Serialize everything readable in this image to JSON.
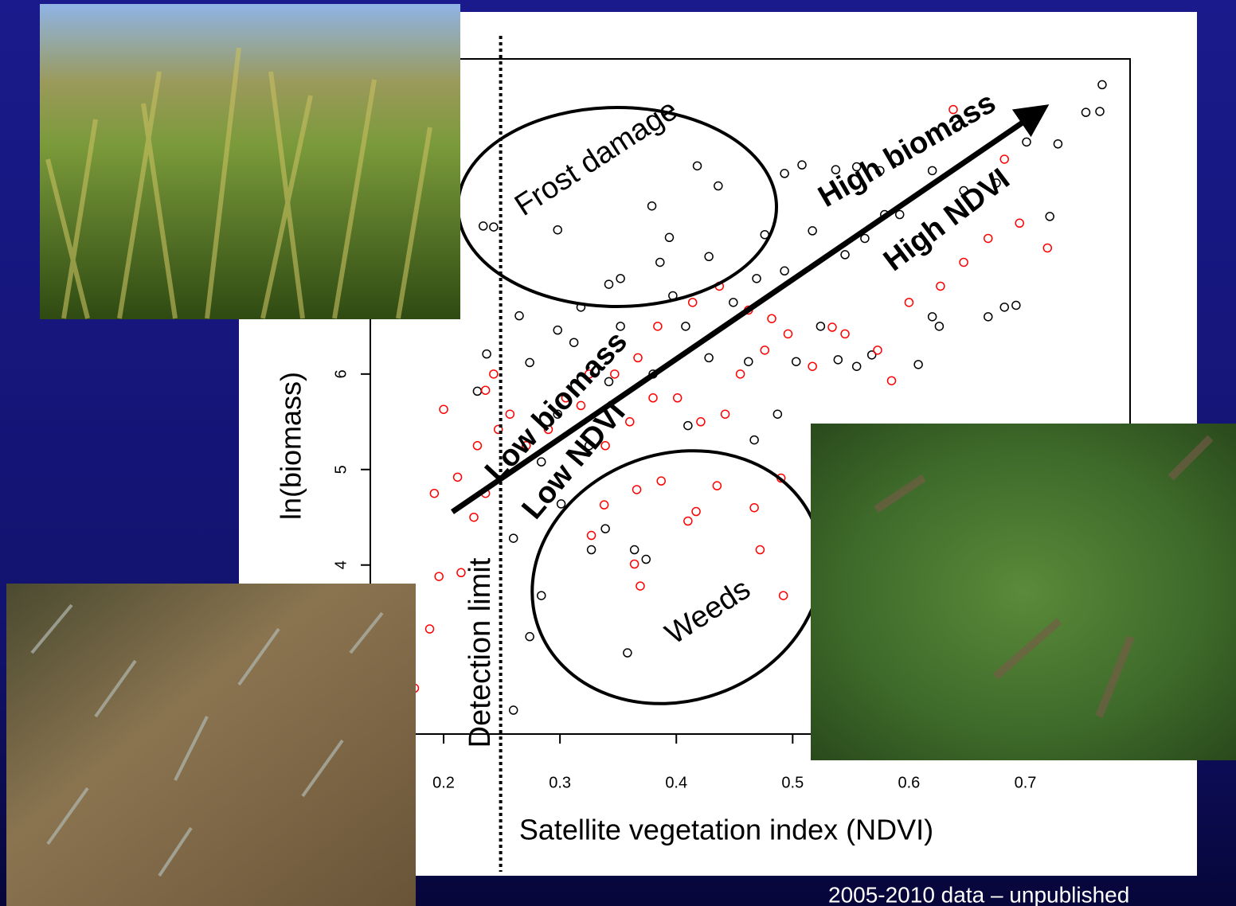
{
  "chart_data": {
    "type": "scatter",
    "xlabel": "Satellite vegetation index (NDVI)",
    "ylabel": "ln(biomass)",
    "xlim": [
      0.137,
      0.79
    ],
    "ylim": [
      2.23,
      9.3
    ],
    "xticks": [
      0.2,
      0.3,
      0.4,
      0.5,
      0.6,
      0.7
    ],
    "yticks": [
      4,
      5,
      6
    ],
    "detection_limit_x": 0.249,
    "annotations": [
      "Frost damage",
      "Weeds",
      "High biomass",
      "High NDVI",
      "Low biomass",
      "Low NDVI",
      "Detection limit"
    ],
    "series": [
      {
        "color": "#000000",
        "x": [
          0.234,
          0.243,
          0.298,
          0.418,
          0.436,
          0.379,
          0.394,
          0.766,
          0.764,
          0.752,
          0.728,
          0.721,
          0.701,
          0.692,
          0.682,
          0.668,
          0.626,
          0.62,
          0.608,
          0.568,
          0.555,
          0.539,
          0.487,
          0.467,
          0.41,
          0.339,
          0.327,
          0.364,
          0.374,
          0.284,
          0.274,
          0.358,
          0.26,
          0.26,
          0.301,
          0.237,
          0.229,
          0.265,
          0.274,
          0.298,
          0.318,
          0.342,
          0.352,
          0.386,
          0.397,
          0.408,
          0.428,
          0.449,
          0.469,
          0.476,
          0.493,
          0.508,
          0.537,
          0.555,
          0.575,
          0.592,
          0.62,
          0.647,
          0.675,
          0.517,
          0.545,
          0.579,
          0.493,
          0.503,
          0.462,
          0.428,
          0.38,
          0.342,
          0.298,
          0.284,
          0.325,
          0.312,
          0.352,
          0.524,
          0.562
        ],
        "values": [
          7.55,
          7.54,
          7.51,
          8.18,
          7.97,
          7.76,
          7.43,
          9.03,
          8.75,
          8.74,
          8.41,
          7.65,
          8.43,
          6.72,
          6.7,
          6.6,
          6.5,
          6.6,
          6.1,
          6.2,
          6.08,
          6.15,
          5.58,
          5.31,
          5.46,
          4.38,
          4.16,
          4.16,
          4.06,
          3.68,
          3.25,
          3.08,
          2.48,
          4.28,
          4.64,
          6.21,
          5.82,
          6.61,
          6.12,
          6.46,
          6.7,
          6.94,
          7.0,
          7.17,
          6.82,
          6.5,
          7.23,
          6.75,
          7.0,
          7.46,
          8.1,
          8.19,
          8.14,
          8.17,
          8.13,
          7.67,
          8.13,
          7.92,
          8.0,
          7.5,
          7.25,
          7.67,
          7.08,
          6.13,
          6.13,
          6.17,
          6.0,
          5.92,
          5.58,
          5.08,
          5.25,
          6.33,
          6.5,
          6.5,
          7.42
        ]
      },
      {
        "color": "#ff0000",
        "x": [
          0.2,
          0.192,
          0.196,
          0.188,
          0.215,
          0.212,
          0.229,
          0.236,
          0.243,
          0.247,
          0.226,
          0.236,
          0.257,
          0.271,
          0.29,
          0.305,
          0.318,
          0.339,
          0.36,
          0.38,
          0.401,
          0.421,
          0.442,
          0.455,
          0.476,
          0.496,
          0.517,
          0.545,
          0.573,
          0.6,
          0.627,
          0.647,
          0.668,
          0.695,
          0.719,
          0.682,
          0.638,
          0.387,
          0.366,
          0.338,
          0.327,
          0.41,
          0.417,
          0.435,
          0.467,
          0.472,
          0.49,
          0.492,
          0.364,
          0.369,
          0.585,
          0.534,
          0.414,
          0.437,
          0.462,
          0.482,
          0.384,
          0.367,
          0.347,
          0.325,
          0.175
        ],
        "values": [
          5.63,
          4.75,
          3.88,
          3.33,
          3.92,
          4.92,
          5.25,
          5.83,
          6.0,
          5.42,
          4.5,
          4.75,
          5.58,
          5.25,
          5.42,
          5.75,
          5.67,
          5.25,
          5.5,
          5.75,
          5.75,
          5.5,
          5.58,
          6.0,
          6.25,
          6.42,
          6.08,
          6.42,
          6.25,
          6.75,
          6.92,
          7.17,
          7.42,
          7.58,
          7.32,
          8.25,
          8.77,
          4.88,
          4.79,
          4.63,
          4.31,
          4.46,
          4.56,
          4.83,
          4.6,
          4.16,
          4.91,
          3.68,
          4.01,
          3.78,
          5.93,
          6.49,
          6.75,
          6.92,
          6.67,
          6.58,
          6.5,
          6.17,
          6.0,
          6.0,
          2.71
        ]
      }
    ]
  },
  "footnote": "2005-2010 data – unpublished"
}
